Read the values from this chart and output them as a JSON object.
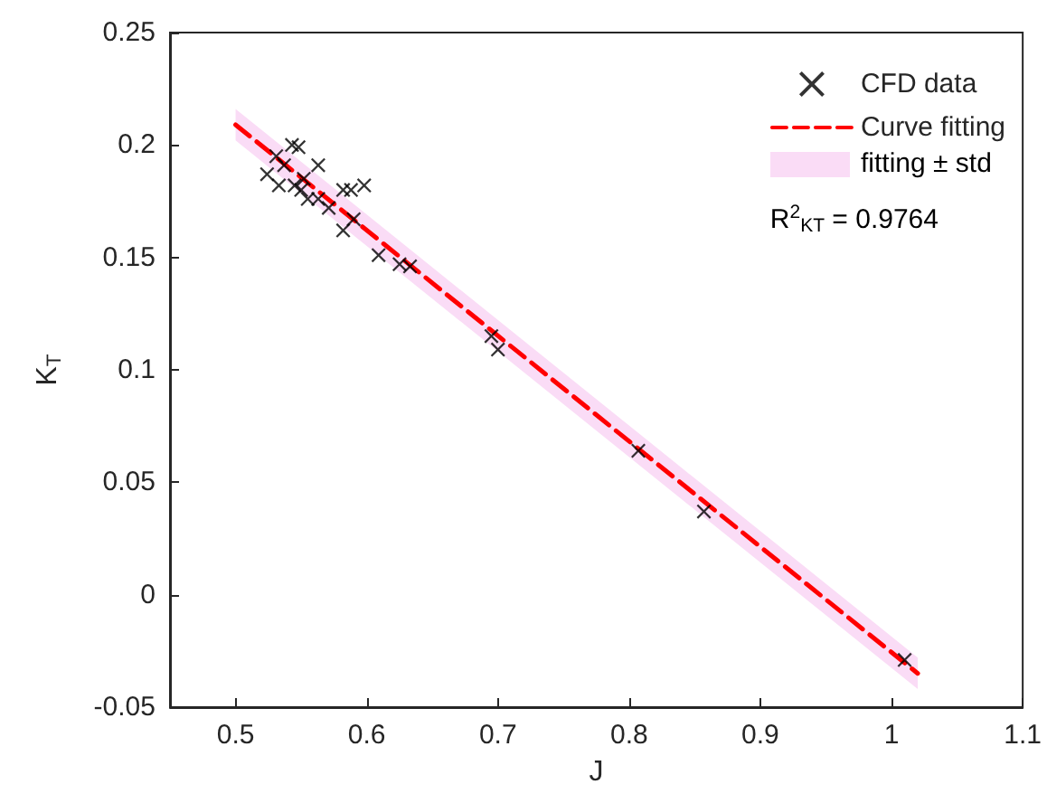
{
  "chart_data": {
    "type": "scatter",
    "xlabel": "J",
    "ylabel": "K$_{T}$",
    "xlim": [
      0.45,
      1.1
    ],
    "xticks": [
      0.5,
      0.6,
      0.7,
      0.8,
      0.9,
      1,
      1.1
    ],
    "ylim": [
      -0.05,
      0.25
    ],
    "yticks": [
      -0.05,
      0,
      0.05,
      0.1,
      0.15,
      0.2,
      0.25
    ],
    "grid": false,
    "legend": "top right",
    "annotations": [
      "fitting ± std",
      "R$^{2}$$_{KT}$ = 0.9764"
    ],
    "series": [
      {
        "name": "Curve fitting",
        "type": "line",
        "color": "#ff0000",
        "line_style": "dashed",
        "marker": "none",
        "x": [
          0.5,
          1.02
        ],
        "values": [
          0.209,
          -0.035
        ],
        "lower": [
          0.202,
          -0.042
        ],
        "upper": [
          0.216,
          -0.028
        ]
      },
      {
        "name": "CFD data",
        "color": "#000000",
        "marker": "cross",
        "x": [
          0.524,
          0.531,
          0.533,
          0.537,
          0.543,
          0.548,
          0.545,
          0.552,
          0.55,
          0.555,
          0.563,
          0.563,
          0.571,
          0.582,
          0.588,
          0.582,
          0.59,
          0.598,
          0.609,
          0.625,
          0.633,
          0.695,
          0.7,
          0.807,
          0.857,
          1.01
        ],
        "values": [
          0.187,
          0.195,
          0.182,
          0.191,
          0.2,
          0.199,
          0.182,
          0.185,
          0.18,
          0.176,
          0.191,
          0.176,
          0.172,
          0.18,
          0.18,
          0.162,
          0.167,
          0.182,
          0.151,
          0.147,
          0.146,
          0.115,
          0.109,
          0.064,
          0.037,
          -0.029
        ]
      }
    ]
  }
}
